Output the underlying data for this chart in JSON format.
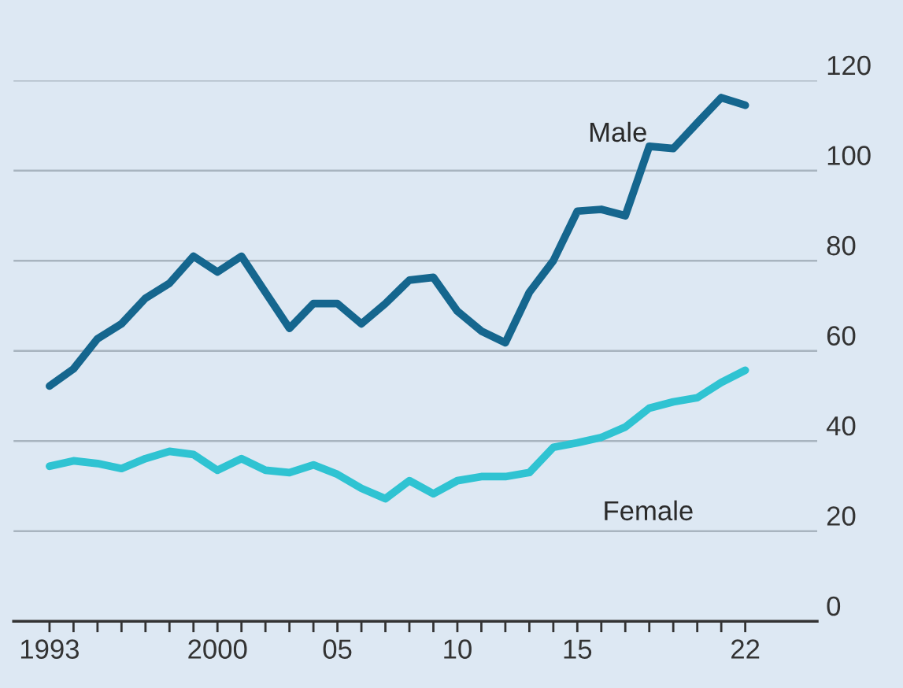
{
  "chart_data": {
    "type": "line",
    "x": [
      1993,
      1994,
      1995,
      1996,
      1997,
      1998,
      1999,
      2000,
      2001,
      2002,
      2003,
      2004,
      2005,
      2006,
      2007,
      2008,
      2009,
      2010,
      2011,
      2012,
      2013,
      2014,
      2015,
      2016,
      2017,
      2018,
      2019,
      2020,
      2021,
      2022
    ],
    "series": [
      {
        "color": "#15668e",
        "values": [
          52.2,
          56,
          62.7,
          66,
          71.7,
          75,
          81,
          77.5,
          81,
          73,
          65,
          70.5,
          70.5,
          66,
          70.5,
          75.7,
          76.3,
          68.8,
          64.4,
          61.8,
          73,
          80,
          91,
          91.4,
          90,
          105.4,
          104.9,
          110.6,
          116.2,
          114.5
        ]
      },
      {
        "color": "#2fc3d2",
        "values": [
          34.4,
          35.6,
          35,
          33.9,
          36.1,
          37.7,
          37,
          33.5,
          36.1,
          33.5,
          33,
          34.7,
          32.6,
          29.5,
          27.2,
          31.2,
          28.3,
          31.2,
          32.1,
          32.1,
          33,
          38.6,
          39.6,
          40.8,
          43.1,
          47.3,
          48.7,
          49.6,
          53,
          55.7
        ]
      }
    ],
    "annotations": [
      "Male",
      "Female"
    ],
    "xlim": [
      1991.5,
      2025
    ],
    "xticks": [
      {
        "value": 1993,
        "label": "1993"
      },
      {
        "value": 1994,
        "label": null
      },
      {
        "value": 1995,
        "label": null
      },
      {
        "value": 1996,
        "label": null
      },
      {
        "value": 1997,
        "label": null
      },
      {
        "value": 1998,
        "label": null
      },
      {
        "value": 1999,
        "label": null
      },
      {
        "value": 2000,
        "label": "2000"
      },
      {
        "value": 2001,
        "label": null
      },
      {
        "value": 2002,
        "label": null
      },
      {
        "value": 2003,
        "label": null
      },
      {
        "value": 2004,
        "label": null
      },
      {
        "value": 2005,
        "label": "05"
      },
      {
        "value": 2006,
        "label": null
      },
      {
        "value": 2007,
        "label": null
      },
      {
        "value": 2008,
        "label": null
      },
      {
        "value": 2009,
        "label": null
      },
      {
        "value": 2010,
        "label": "10"
      },
      {
        "value": 2011,
        "label": null
      },
      {
        "value": 2012,
        "label": null
      },
      {
        "value": 2013,
        "label": null
      },
      {
        "value": 2014,
        "label": null
      },
      {
        "value": 2015,
        "label": "15"
      },
      {
        "value": 2016,
        "label": null
      },
      {
        "value": 2017,
        "label": null
      },
      {
        "value": 2018,
        "label": null
      },
      {
        "value": 2019,
        "label": null
      },
      {
        "value": 2020,
        "label": null
      },
      {
        "value": 2021,
        "label": null
      },
      {
        "value": 2022,
        "label": "22"
      }
    ],
    "ylim": [
      0,
      120
    ],
    "yticks": [
      0,
      20,
      40,
      60,
      80,
      100,
      120
    ],
    "grid": "y",
    "marker": "none",
    "line_style": "solid"
  }
}
